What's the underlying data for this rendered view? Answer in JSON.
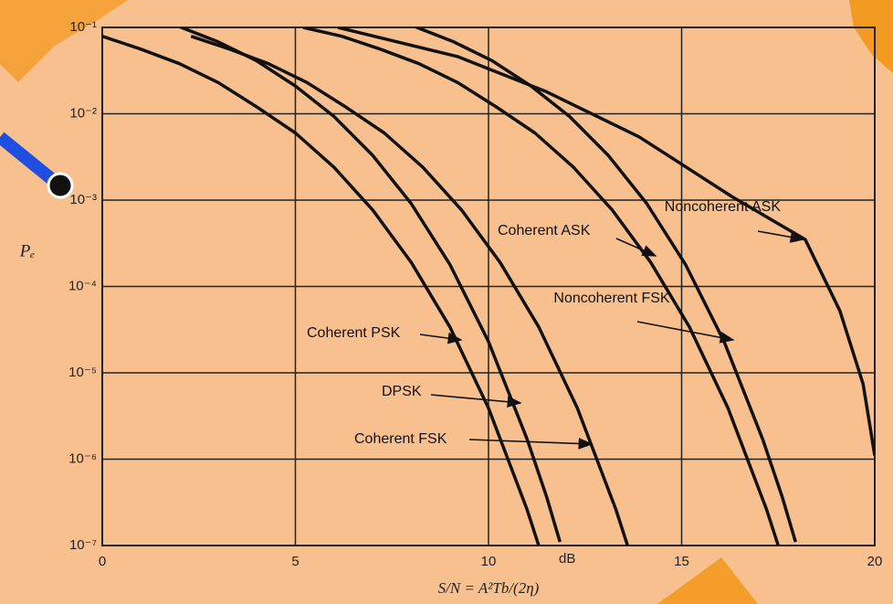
{
  "chart_data": {
    "type": "line",
    "log_y": true,
    "grid": true,
    "line_color": "#111111",
    "background": "#f7c08e",
    "x_label": "S/N = A²Tb/(2η)",
    "x_unit": "dB",
    "y_label": "Pₑ",
    "xlim": [
      0,
      20
    ],
    "xticks": [
      0,
      5,
      10,
      15,
      20
    ],
    "ylim": [
      1e-07,
      0.1
    ],
    "yticks": [
      {
        "value": 1e-07,
        "label": "10⁻⁷"
      },
      {
        "value": 1e-06,
        "label": "10⁻⁶"
      },
      {
        "value": 1e-05,
        "label": "10⁻⁵"
      },
      {
        "value": 0.0001,
        "label": "10⁻⁴"
      },
      {
        "value": 0.001,
        "label": "10⁻³"
      },
      {
        "value": 0.01,
        "label": "10⁻²"
      },
      {
        "value": 0.1,
        "label": "10⁻¹"
      }
    ],
    "series": [
      {
        "name": "Coherent PSK",
        "x": [
          0,
          1,
          2,
          3,
          4,
          5,
          6,
          7,
          8,
          9,
          10,
          11,
          11.3
        ],
        "values": [
          0.079,
          0.056,
          0.038,
          0.023,
          0.012,
          0.006,
          0.0024,
          0.00077,
          0.00019,
          3.4e-05,
          3.9e-06,
          2.6e-07,
          1e-07
        ]
      },
      {
        "name": "DPSK",
        "x": [
          2,
          3,
          4,
          5,
          6,
          7,
          8,
          9,
          10,
          11,
          11.5,
          11.85
        ],
        "values": [
          0.102,
          0.068,
          0.041,
          0.021,
          0.0093,
          0.0033,
          0.00091,
          0.00018,
          2.3e-05,
          1.7e-06,
          3.7e-07,
          1.1e-07
        ]
      },
      {
        "name": "Coherent FSK",
        "x": [
          2.3,
          3.3,
          4.3,
          5.3,
          6.3,
          7.3,
          8.3,
          9.3,
          10.3,
          11.3,
          12.3,
          13.3,
          13.6
        ],
        "values": [
          0.079,
          0.056,
          0.038,
          0.023,
          0.012,
          0.006,
          0.0024,
          0.00077,
          0.00019,
          3.4e-05,
          3.9e-06,
          2.6e-07,
          1e-07
        ]
      },
      {
        "name": "Coherent ASK",
        "x": [
          5.2,
          6.2,
          7.2,
          8.2,
          9.2,
          10.2,
          11.2,
          12.2,
          13.2,
          14.2,
          15.2,
          16.2,
          17.2,
          17.5
        ],
        "values": [
          0.1,
          0.079,
          0.056,
          0.038,
          0.023,
          0.012,
          0.006,
          0.0024,
          0.00077,
          0.00019,
          3.4e-05,
          3.9e-06,
          2.6e-07,
          1e-07
        ]
      },
      {
        "name": "Noncoherent FSK",
        "x": [
          8.1,
          9.1,
          10.1,
          11.1,
          12.1,
          13.1,
          14.1,
          15.1,
          16.1,
          17.1,
          17.6,
          17.95
        ],
        "values": [
          0.102,
          0.068,
          0.041,
          0.021,
          0.0093,
          0.0033,
          0.00091,
          0.00018,
          2.3e-05,
          1.7e-06,
          3.7e-07,
          1.1e-07
        ]
      },
      {
        "name": "Noncoherent ASK",
        "x": [
          6.1,
          9.2,
          11.5,
          13.9,
          16.3,
          18.2,
          19.1,
          19.7,
          20
        ],
        "values": [
          0.1,
          0.046,
          0.018,
          0.0054,
          0.0011,
          0.00035,
          5.2e-05,
          7.4e-06,
          1.1e-06
        ]
      }
    ]
  }
}
